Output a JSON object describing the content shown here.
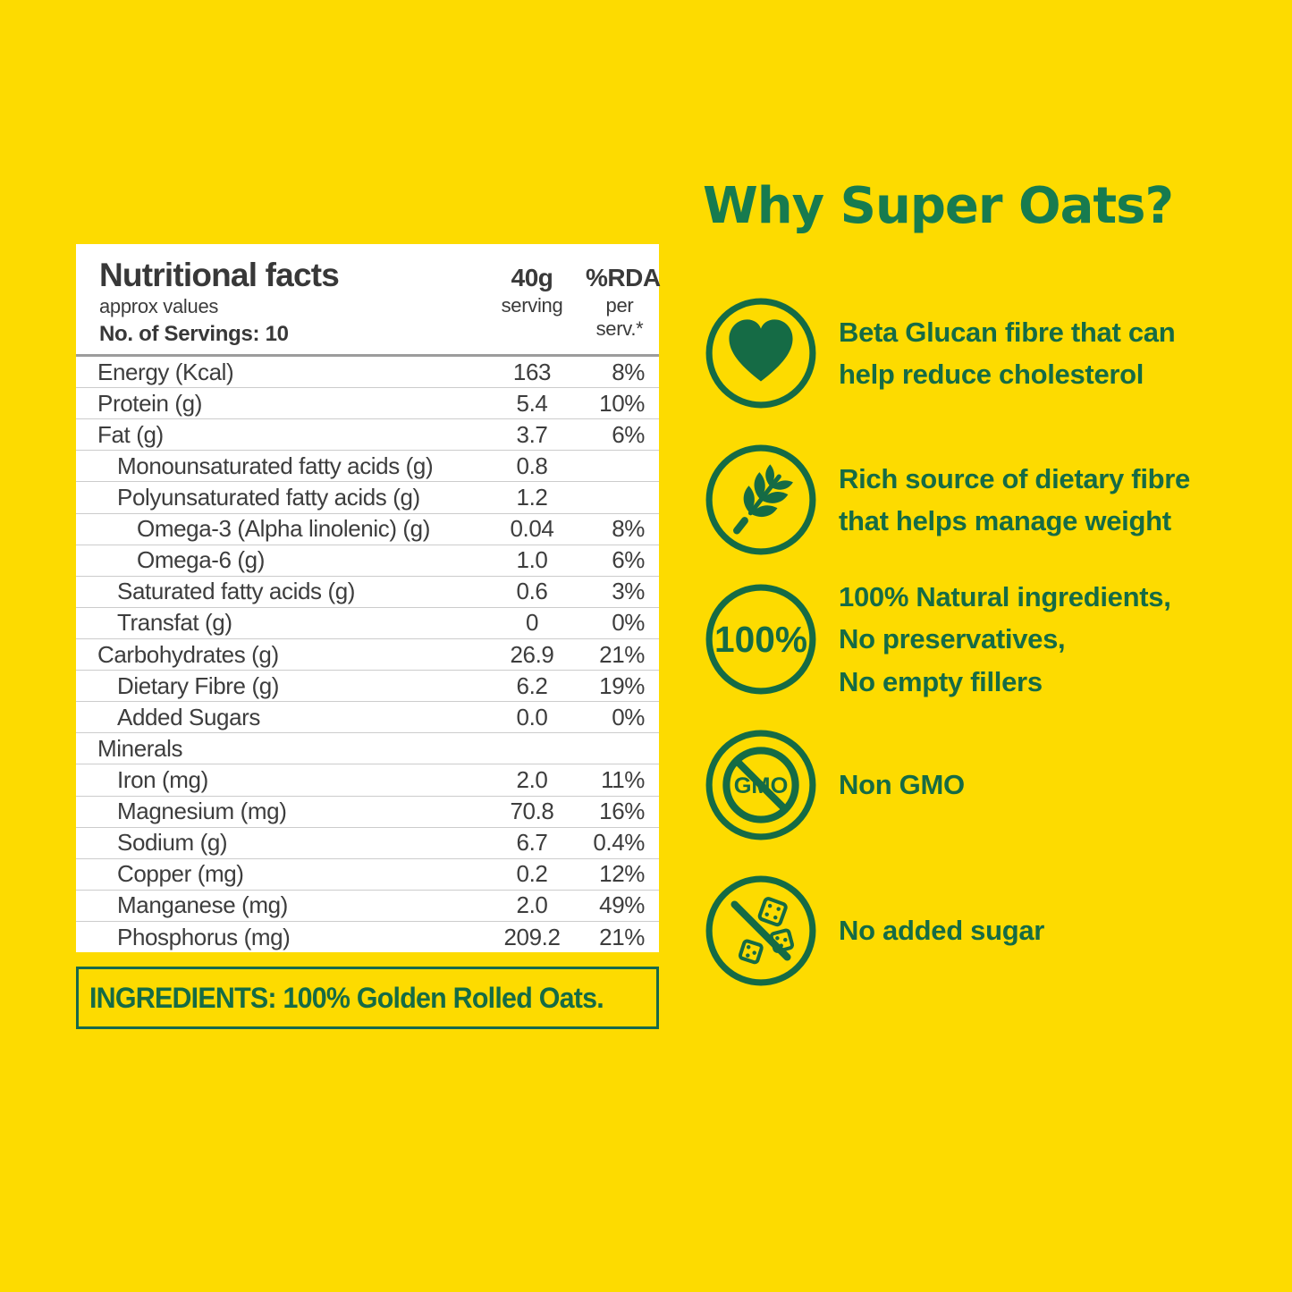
{
  "colors": {
    "background": "#FDDB00",
    "green": "#156B45",
    "heading_green": "#177B4F",
    "table_text": "#3D3D3D",
    "white": "#FFFFFF"
  },
  "nutrition_table": {
    "title": "Nutritional facts",
    "subtitle": "approx values",
    "servings_line": "No. of Servings: 10",
    "col_serving": {
      "line1": "40g",
      "line2": "serving"
    },
    "col_rda": {
      "line1": "%RDA",
      "line2": "per serv.*"
    },
    "rows": [
      {
        "label": "Energy (Kcal)",
        "value": "163",
        "rda": "8%",
        "indent": 0
      },
      {
        "label": "Protein (g)",
        "value": "5.4",
        "rda": "10%",
        "indent": 0
      },
      {
        "label": "Fat (g)",
        "value": "3.7",
        "rda": "6%",
        "indent": 0
      },
      {
        "label": "Monounsaturated fatty acids (g)",
        "value": "0.8",
        "rda": "",
        "indent": 1
      },
      {
        "label": "Polyunsaturated fatty acids (g)",
        "value": "1.2",
        "rda": "",
        "indent": 1
      },
      {
        "label": "Omega-3 (Alpha linolenic) (g)",
        "value": "0.04",
        "rda": "8%",
        "indent": 2
      },
      {
        "label": "Omega-6 (g)",
        "value": "1.0",
        "rda": "6%",
        "indent": 2
      },
      {
        "label": "Saturated fatty acids (g)",
        "value": "0.6",
        "rda": "3%",
        "indent": 1
      },
      {
        "label": "Transfat (g)",
        "value": "0",
        "rda": "0%",
        "indent": 1
      },
      {
        "label": "Carbohydrates (g)",
        "value": "26.9",
        "rda": "21%",
        "indent": 0
      },
      {
        "label": "Dietary Fibre (g)",
        "value": "6.2",
        "rda": "19%",
        "indent": 1
      },
      {
        "label": "Added Sugars",
        "value": "0.0",
        "rda": "0%",
        "indent": 1
      },
      {
        "label": "Minerals",
        "value": "",
        "rda": "",
        "indent": 0
      },
      {
        "label": "Iron (mg)",
        "value": "2.0",
        "rda": "11%",
        "indent": 1
      },
      {
        "label": "Magnesium (mg)",
        "value": "70.8",
        "rda": "16%",
        "indent": 1
      },
      {
        "label": "Sodium (g)",
        "value": "6.7",
        "rda": "0.4%",
        "indent": 1
      },
      {
        "label": "Copper (mg)",
        "value": "0.2",
        "rda": "12%",
        "indent": 1
      },
      {
        "label": "Manganese (mg)",
        "value": "2.0",
        "rda": "49%",
        "indent": 1
      },
      {
        "label": "Phosphorus (mg)",
        "value": "209.2",
        "rda": "21%",
        "indent": 1
      }
    ]
  },
  "ingredients": {
    "text": "INGREDIENTS: 100% Golden Rolled Oats."
  },
  "benefits": {
    "heading": "Why Super Oats?",
    "items": [
      {
        "icon": "heart-icon",
        "lines": [
          "Beta Glucan fibre that can",
          "help reduce cholesterol"
        ]
      },
      {
        "icon": "wheat-icon",
        "lines": [
          "Rich source of dietary fibre",
          "that helps manage weight"
        ]
      },
      {
        "icon": "hundred-percent-icon",
        "icon_label": "100%",
        "lines": [
          "100% Natural ingredients,",
          "No preservatives,",
          "No empty fillers"
        ]
      },
      {
        "icon": "non-gmo-icon",
        "icon_label": "GMO",
        "lines": [
          "Non GMO"
        ]
      },
      {
        "icon": "no-added-sugar-icon",
        "lines": [
          "No added sugar"
        ]
      }
    ]
  }
}
